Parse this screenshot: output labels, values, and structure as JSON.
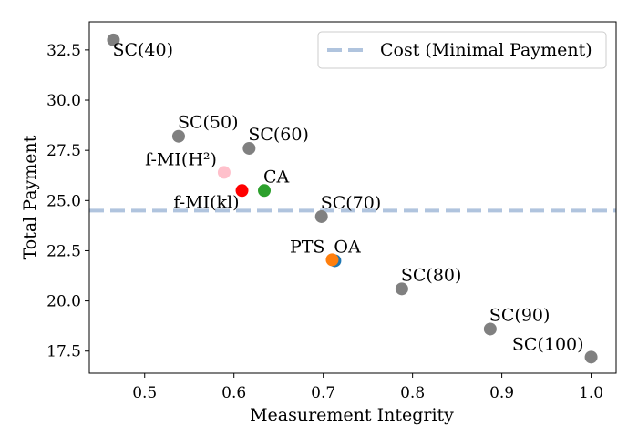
{
  "chart_data": {
    "type": "scatter",
    "title": "",
    "xlabel": "Measurement Integrity",
    "ylabel": "Total Payment",
    "xlim": [
      0.438,
      1.028
    ],
    "ylim": [
      16.4,
      33.9
    ],
    "xticks": [
      0.5,
      0.6,
      0.7,
      0.8,
      0.9,
      1.0
    ],
    "xtick_labels": [
      "0.5",
      "0.6",
      "0.7",
      "0.8",
      "0.9",
      "1.0"
    ],
    "yticks": [
      17.5,
      20.0,
      22.5,
      25.0,
      27.5,
      30.0,
      32.5
    ],
    "ytick_labels": [
      "17.5",
      "20.0",
      "22.5",
      "25.0",
      "27.5",
      "30.0",
      "32.5"
    ],
    "grid": false,
    "legend": {
      "position": "top-right",
      "entries": [
        {
          "label": "Cost (Minimal Payment)",
          "color": "#b0c4de",
          "style": "dashed"
        }
      ]
    },
    "hline": {
      "y": 24.5,
      "label": "Cost (Minimal Payment)",
      "color": "#b0c4de"
    },
    "points": [
      {
        "label": "SC(40)",
        "x": 0.465,
        "y": 33.0,
        "color": "#808080",
        "anchor": "below-right"
      },
      {
        "label": "SC(50)",
        "x": 0.538,
        "y": 28.2,
        "color": "#808080",
        "anchor": "above-right"
      },
      {
        "label": "SC(60)",
        "x": 0.617,
        "y": 27.6,
        "color": "#808080",
        "anchor": "above-right"
      },
      {
        "label": "f-MI(H²)",
        "x": 0.589,
        "y": 26.4,
        "color": "#ffc0cb",
        "anchor": "above-left"
      },
      {
        "label": "f-MI(kl)",
        "x": 0.609,
        "y": 25.5,
        "color": "#ff0000",
        "anchor": "below-left"
      },
      {
        "label": "CA",
        "x": 0.634,
        "y": 25.5,
        "color": "#2ca02c",
        "anchor": "above-right"
      },
      {
        "label": "SC(70)",
        "x": 0.698,
        "y": 24.2,
        "color": "#808080",
        "anchor": "above-right"
      },
      {
        "label": "OA",
        "x": 0.713,
        "y": 22.0,
        "color": "#1f77b4",
        "anchor": "above-right"
      },
      {
        "label": "PTS",
        "x": 0.71,
        "y": 22.05,
        "color": "#ff7f0e",
        "anchor": "above-left"
      },
      {
        "label": "SC(80)",
        "x": 0.788,
        "y": 20.6,
        "color": "#808080",
        "anchor": "above-right"
      },
      {
        "label": "SC(90)",
        "x": 0.887,
        "y": 18.6,
        "color": "#808080",
        "anchor": "above-right"
      },
      {
        "label": "SC(100)",
        "x": 1.0,
        "y": 17.2,
        "color": "#808080",
        "anchor": "above-left"
      }
    ]
  }
}
